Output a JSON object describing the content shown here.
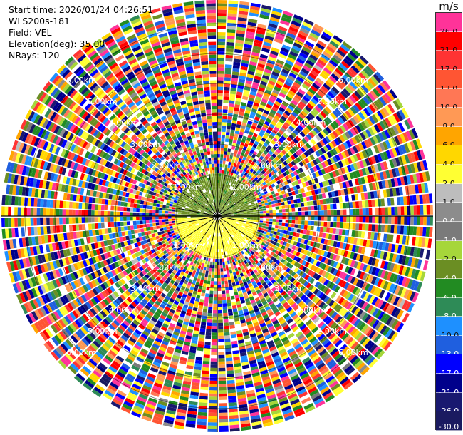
{
  "header": {
    "start_time": "Start time: 2026/01/24 04:26:51",
    "instrument": "WLS200s-181",
    "field": "Field: VEL",
    "elevation": "Elevation(deg): 35.00",
    "nrays": "NRays: 120"
  },
  "colorbar": {
    "unit": "m/s",
    "bins": [
      {
        "label": "26.0",
        "color": "#ff3399"
      },
      {
        "label": "21.0",
        "color": "#ff0000"
      },
      {
        "label": "17.0",
        "color": "#ff3333"
      },
      {
        "label": "13.0",
        "color": "#ff5533"
      },
      {
        "label": "10.0",
        "color": "#ff7755"
      },
      {
        "label": "8.0",
        "color": "#ff9955"
      },
      {
        "label": "6.0",
        "color": "#ffa500"
      },
      {
        "label": "4.0",
        "color": "#ffd700"
      },
      {
        "label": "2.0",
        "color": "#ffff33"
      },
      {
        "label": "1.0",
        "color": "#bdbdbd"
      },
      {
        "label": "0.0",
        "color": "#8c8c8c"
      },
      {
        "label": "-1.0",
        "color": "#7a7a7a"
      },
      {
        "label": "-2.0",
        "color": "#a6d63a"
      },
      {
        "label": "-4.0",
        "color": "#6b8e23"
      },
      {
        "label": "-6.0",
        "color": "#228b22"
      },
      {
        "label": "-8.0",
        "color": "#2e8b57"
      },
      {
        "label": "-10.0",
        "color": "#1e90ff"
      },
      {
        "label": "-13.0",
        "color": "#1f5fdf"
      },
      {
        "label": "-17.0",
        "color": "#0000ff"
      },
      {
        "label": "-21.0",
        "color": "#00008b"
      },
      {
        "label": "-26.0",
        "color": "#191970"
      },
      {
        "label": "-30.0",
        "color": "#1a1a60"
      }
    ]
  },
  "range_rings": {
    "labels": [
      "1.00km",
      "2.00km",
      "3.00km",
      "4.00km",
      "5.00km",
      "6.00km"
    ]
  }
}
